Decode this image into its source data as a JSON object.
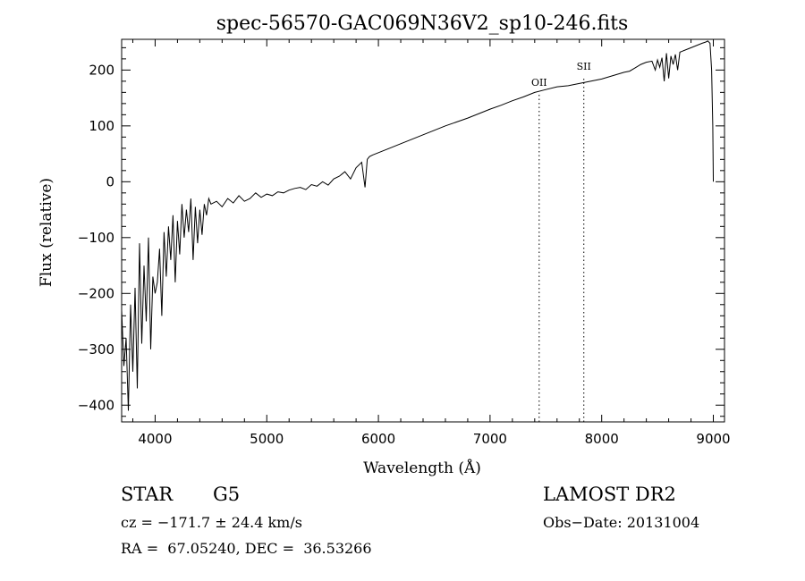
{
  "chart_data": {
    "type": "line",
    "title": "spec-56570-GAC069N36V2_sp10-246.fits",
    "xlabel": "Wavelength (Å)",
    "ylabel": "Flux (relative)",
    "xlim": [
      3700,
      9100
    ],
    "ylim": [
      -430,
      255
    ],
    "xticks": [
      4000,
      5000,
      6000,
      7000,
      8000,
      9000
    ],
    "yticks": [
      -400,
      -300,
      -200,
      -100,
      0,
      100,
      200
    ],
    "xtick_labels": [
      "4000",
      "5000",
      "6000",
      "7000",
      "8000",
      "9000"
    ],
    "ytick_labels": [
      "−400",
      "−300",
      "−200",
      "−100",
      "0",
      "100",
      "200"
    ],
    "grid": false,
    "line_color": "#000000",
    "series": [
      {
        "x": [
          3700,
          3720,
          3740,
          3760,
          3780,
          3800,
          3820,
          3840,
          3860,
          3880,
          3900,
          3920,
          3940,
          3960,
          3980,
          4000,
          4020,
          4040,
          4060,
          4080,
          4100,
          4120,
          4140,
          4160,
          4180,
          4200,
          4220,
          4240,
          4260,
          4280,
          4300,
          4320,
          4340,
          4360,
          4380,
          4400,
          4420,
          4440,
          4460,
          4480,
          4500,
          4550,
          4600,
          4650,
          4700,
          4750,
          4800,
          4850,
          4900,
          4950,
          5000,
          5050,
          5100,
          5150,
          5200,
          5250,
          5300,
          5350,
          5400,
          5450,
          5500,
          5550,
          5600,
          5650,
          5700,
          5750,
          5800,
          5850,
          5880,
          5900,
          5920,
          5950,
          6000,
          6100,
          6200,
          6300,
          6400,
          6500,
          6600,
          6700,
          6800,
          6900,
          7000,
          7100,
          7200,
          7300,
          7400,
          7500,
          7600,
          7700,
          7800,
          7850,
          7900,
          8000,
          8100,
          8200,
          8250,
          8300,
          8350,
          8400,
          8450,
          8480,
          8500,
          8520,
          8540,
          8560,
          8580,
          8600,
          8620,
          8640,
          8660,
          8680,
          8700,
          8750,
          8800,
          8850,
          8900,
          8930,
          8950,
          8970,
          8985,
          8995,
          9000
        ],
        "y": [
          -230,
          -330,
          -280,
          -410,
          -220,
          -340,
          -190,
          -370,
          -110,
          -290,
          -150,
          -250,
          -100,
          -300,
          -170,
          -200,
          -180,
          -120,
          -240,
          -90,
          -170,
          -80,
          -140,
          -60,
          -180,
          -70,
          -130,
          -40,
          -100,
          -50,
          -90,
          -30,
          -140,
          -45,
          -110,
          -50,
          -95,
          -40,
          -60,
          -30,
          -40,
          -35,
          -45,
          -30,
          -38,
          -25,
          -35,
          -30,
          -20,
          -28,
          -22,
          -25,
          -18,
          -20,
          -15,
          -12,
          -10,
          -14,
          -5,
          -8,
          0,
          -6,
          5,
          10,
          18,
          5,
          25,
          35,
          -10,
          40,
          45,
          48,
          52,
          60,
          68,
          76,
          84,
          92,
          100,
          107,
          114,
          122,
          130,
          137,
          145,
          152,
          160,
          165,
          170,
          172,
          176,
          178,
          180,
          184,
          190,
          196,
          198,
          204,
          210,
          214,
          216,
          200,
          218,
          205,
          222,
          180,
          230,
          185,
          225,
          210,
          228,
          200,
          232,
          236,
          240,
          244,
          248,
          250,
          252,
          248,
          200,
          100,
          0
        ]
      }
    ],
    "annotations": [
      {
        "label": "OII",
        "x": 7440
      },
      {
        "label": "SII",
        "x": 7840
      }
    ]
  },
  "info": {
    "object_class": "STAR",
    "subclass": "G5",
    "survey": "LAMOST DR2",
    "cz": "cz = −171.7 ± 24.4 km/s",
    "obs_date": "Obs−Date: 20131004",
    "coords": "RA =  67.05240, DEC =  36.53266"
  }
}
